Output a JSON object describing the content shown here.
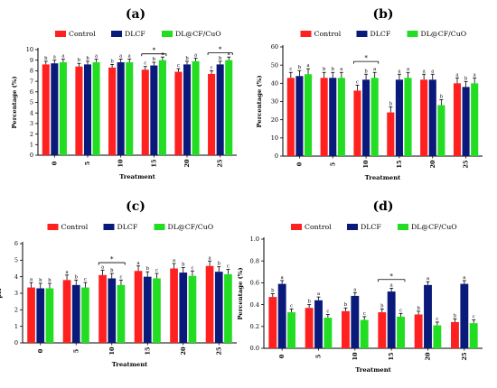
{
  "figure": {
    "series_colors": {
      "Control": "#ff2020",
      "DLCF": "#0a1a7a",
      "DL@CF/CuO": "#22dd22"
    }
  },
  "chart_data": [
    {
      "type": "bar",
      "panel_label": "(a)",
      "xlabel": "Treatment",
      "ylabel": "Percentage (%)",
      "categories": [
        "0",
        "5",
        "10",
        "15",
        "20",
        "25"
      ],
      "ylim": [
        0,
        10
      ],
      "yticks": [
        "0",
        "1",
        "2",
        "3",
        "4",
        "5",
        "6",
        "7",
        "8",
        "9",
        "10"
      ],
      "legend": "top",
      "series": [
        {
          "name": "Control",
          "values": [
            8.6,
            8.4,
            8.3,
            8.1,
            7.9,
            7.7
          ],
          "errors": [
            0.3,
            0.3,
            0.3,
            0.3,
            0.3,
            0.3
          ],
          "letters": [
            "b",
            "b",
            "b",
            "c",
            "c",
            "c"
          ]
        },
        {
          "name": "DLCF",
          "values": [
            8.7,
            8.6,
            8.8,
            8.5,
            8.6,
            8.6
          ],
          "errors": [
            0.3,
            0.3,
            0.3,
            0.3,
            0.3,
            0.3
          ],
          "letters": [
            "a",
            "b",
            "a",
            "b",
            "b",
            "b"
          ]
        },
        {
          "name": "DL@CF/CuO",
          "values": [
            8.8,
            8.8,
            8.8,
            9.0,
            8.9,
            9.0
          ],
          "errors": [
            0.3,
            0.3,
            0.3,
            0.3,
            0.3,
            0.3
          ],
          "letters": [
            "a",
            "a",
            "a",
            "a",
            "a",
            "a"
          ]
        }
      ],
      "brackets": [
        {
          "category": "15",
          "y": 9.6,
          "label": "*"
        },
        {
          "category": "25",
          "y": 9.7,
          "label": "*"
        }
      ]
    },
    {
      "type": "bar",
      "panel_label": "(b)",
      "xlabel": "Treatment",
      "ylabel": "Percentage (%)",
      "categories": [
        "0",
        "5",
        "10",
        "15",
        "20",
        "25"
      ],
      "ylim": [
        0,
        60
      ],
      "yticks": [
        "0",
        "10",
        "20",
        "30",
        "40",
        "50",
        "60"
      ],
      "legend": "top",
      "series": [
        {
          "name": "Control",
          "values": [
            43,
            43,
            36,
            24,
            42,
            40
          ],
          "errors": [
            3,
            3,
            3,
            3,
            3,
            3
          ],
          "letters": [
            "c",
            "b",
            "c",
            "b",
            "a",
            "a"
          ]
        },
        {
          "name": "DLCF",
          "values": [
            44,
            43,
            42,
            42,
            42,
            38
          ],
          "errors": [
            3,
            3,
            3,
            3,
            3,
            3
          ],
          "letters": [
            "b",
            "b",
            "b",
            "a",
            "a",
            "b"
          ]
        },
        {
          "name": "DL@CF/CuO",
          "values": [
            45,
            43,
            43,
            43,
            28,
            40
          ],
          "errors": [
            3,
            3,
            3,
            3,
            3,
            3
          ],
          "letters": [
            "a",
            "a",
            "a",
            "a",
            "b",
            "a"
          ]
        }
      ],
      "brackets": [
        {
          "category": "10",
          "y": 52,
          "label": "*"
        }
      ]
    },
    {
      "type": "bar",
      "panel_label": "(c)",
      "xlabel": "Treatment",
      "ylabel": "pH",
      "categories": [
        "0",
        "5",
        "10",
        "15",
        "20",
        "25"
      ],
      "ylim": [
        0,
        6
      ],
      "yticks": [
        "0",
        "1",
        "2",
        "3",
        "4",
        "5",
        "6"
      ],
      "legend": "top",
      "series": [
        {
          "name": "Control",
          "values": [
            3.35,
            3.8,
            4.1,
            4.35,
            4.5,
            4.65
          ],
          "errors": [
            0.3,
            0.3,
            0.3,
            0.3,
            0.3,
            0.3
          ],
          "letters": [
            "a",
            "a",
            "a",
            "a",
            "a",
            "a"
          ]
        },
        {
          "name": "DLCF",
          "values": [
            3.3,
            3.5,
            3.9,
            4.0,
            4.25,
            4.3
          ],
          "errors": [
            0.3,
            0.3,
            0.3,
            0.3,
            0.3,
            0.3
          ],
          "letters": [
            "b",
            "b",
            "b",
            "b",
            "b",
            "b"
          ]
        },
        {
          "name": "DL@CF/CuO",
          "values": [
            3.3,
            3.35,
            3.5,
            3.9,
            4.05,
            4.15
          ],
          "errors": [
            0.3,
            0.3,
            0.3,
            0.3,
            0.3,
            0.3
          ],
          "letters": [
            "b",
            "c",
            "c",
            "c",
            "c",
            "c"
          ]
        }
      ],
      "brackets": [
        {
          "category": "10",
          "y": 4.85,
          "label": "*"
        }
      ]
    },
    {
      "type": "bar",
      "panel_label": "(d)",
      "xlabel": "Treatment",
      "ylabel": "Percentage (%)",
      "categories": [
        "0",
        "5",
        "10",
        "15",
        "20",
        "25"
      ],
      "ylim": [
        0,
        1.0
      ],
      "yticks": [
        "0.0",
        "0.2",
        "0.4",
        "0.6",
        "0.8",
        "1.0"
      ],
      "legend": "top",
      "series": [
        {
          "name": "Control",
          "values": [
            0.47,
            0.37,
            0.34,
            0.33,
            0.31,
            0.24
          ],
          "errors": [
            0.03,
            0.03,
            0.03,
            0.03,
            0.03,
            0.03
          ],
          "letters": [
            "b",
            "b",
            "b",
            "b",
            "b",
            "b"
          ]
        },
        {
          "name": "DLCF",
          "values": [
            0.59,
            0.44,
            0.48,
            0.52,
            0.58,
            0.59
          ],
          "errors": [
            0.03,
            0.03,
            0.03,
            0.03,
            0.03,
            0.03
          ],
          "letters": [
            "a",
            "a",
            "a",
            "a",
            "a",
            "a"
          ]
        },
        {
          "name": "DL@CF/CuO",
          "values": [
            0.33,
            0.28,
            0.26,
            0.29,
            0.21,
            0.23
          ],
          "errors": [
            0.03,
            0.03,
            0.03,
            0.03,
            0.03,
            0.03
          ],
          "letters": [
            "c",
            "c",
            "c",
            "c",
            "c",
            "c"
          ]
        }
      ],
      "brackets": [
        {
          "category": "15",
          "y": 0.63,
          "label": "*"
        }
      ]
    }
  ]
}
